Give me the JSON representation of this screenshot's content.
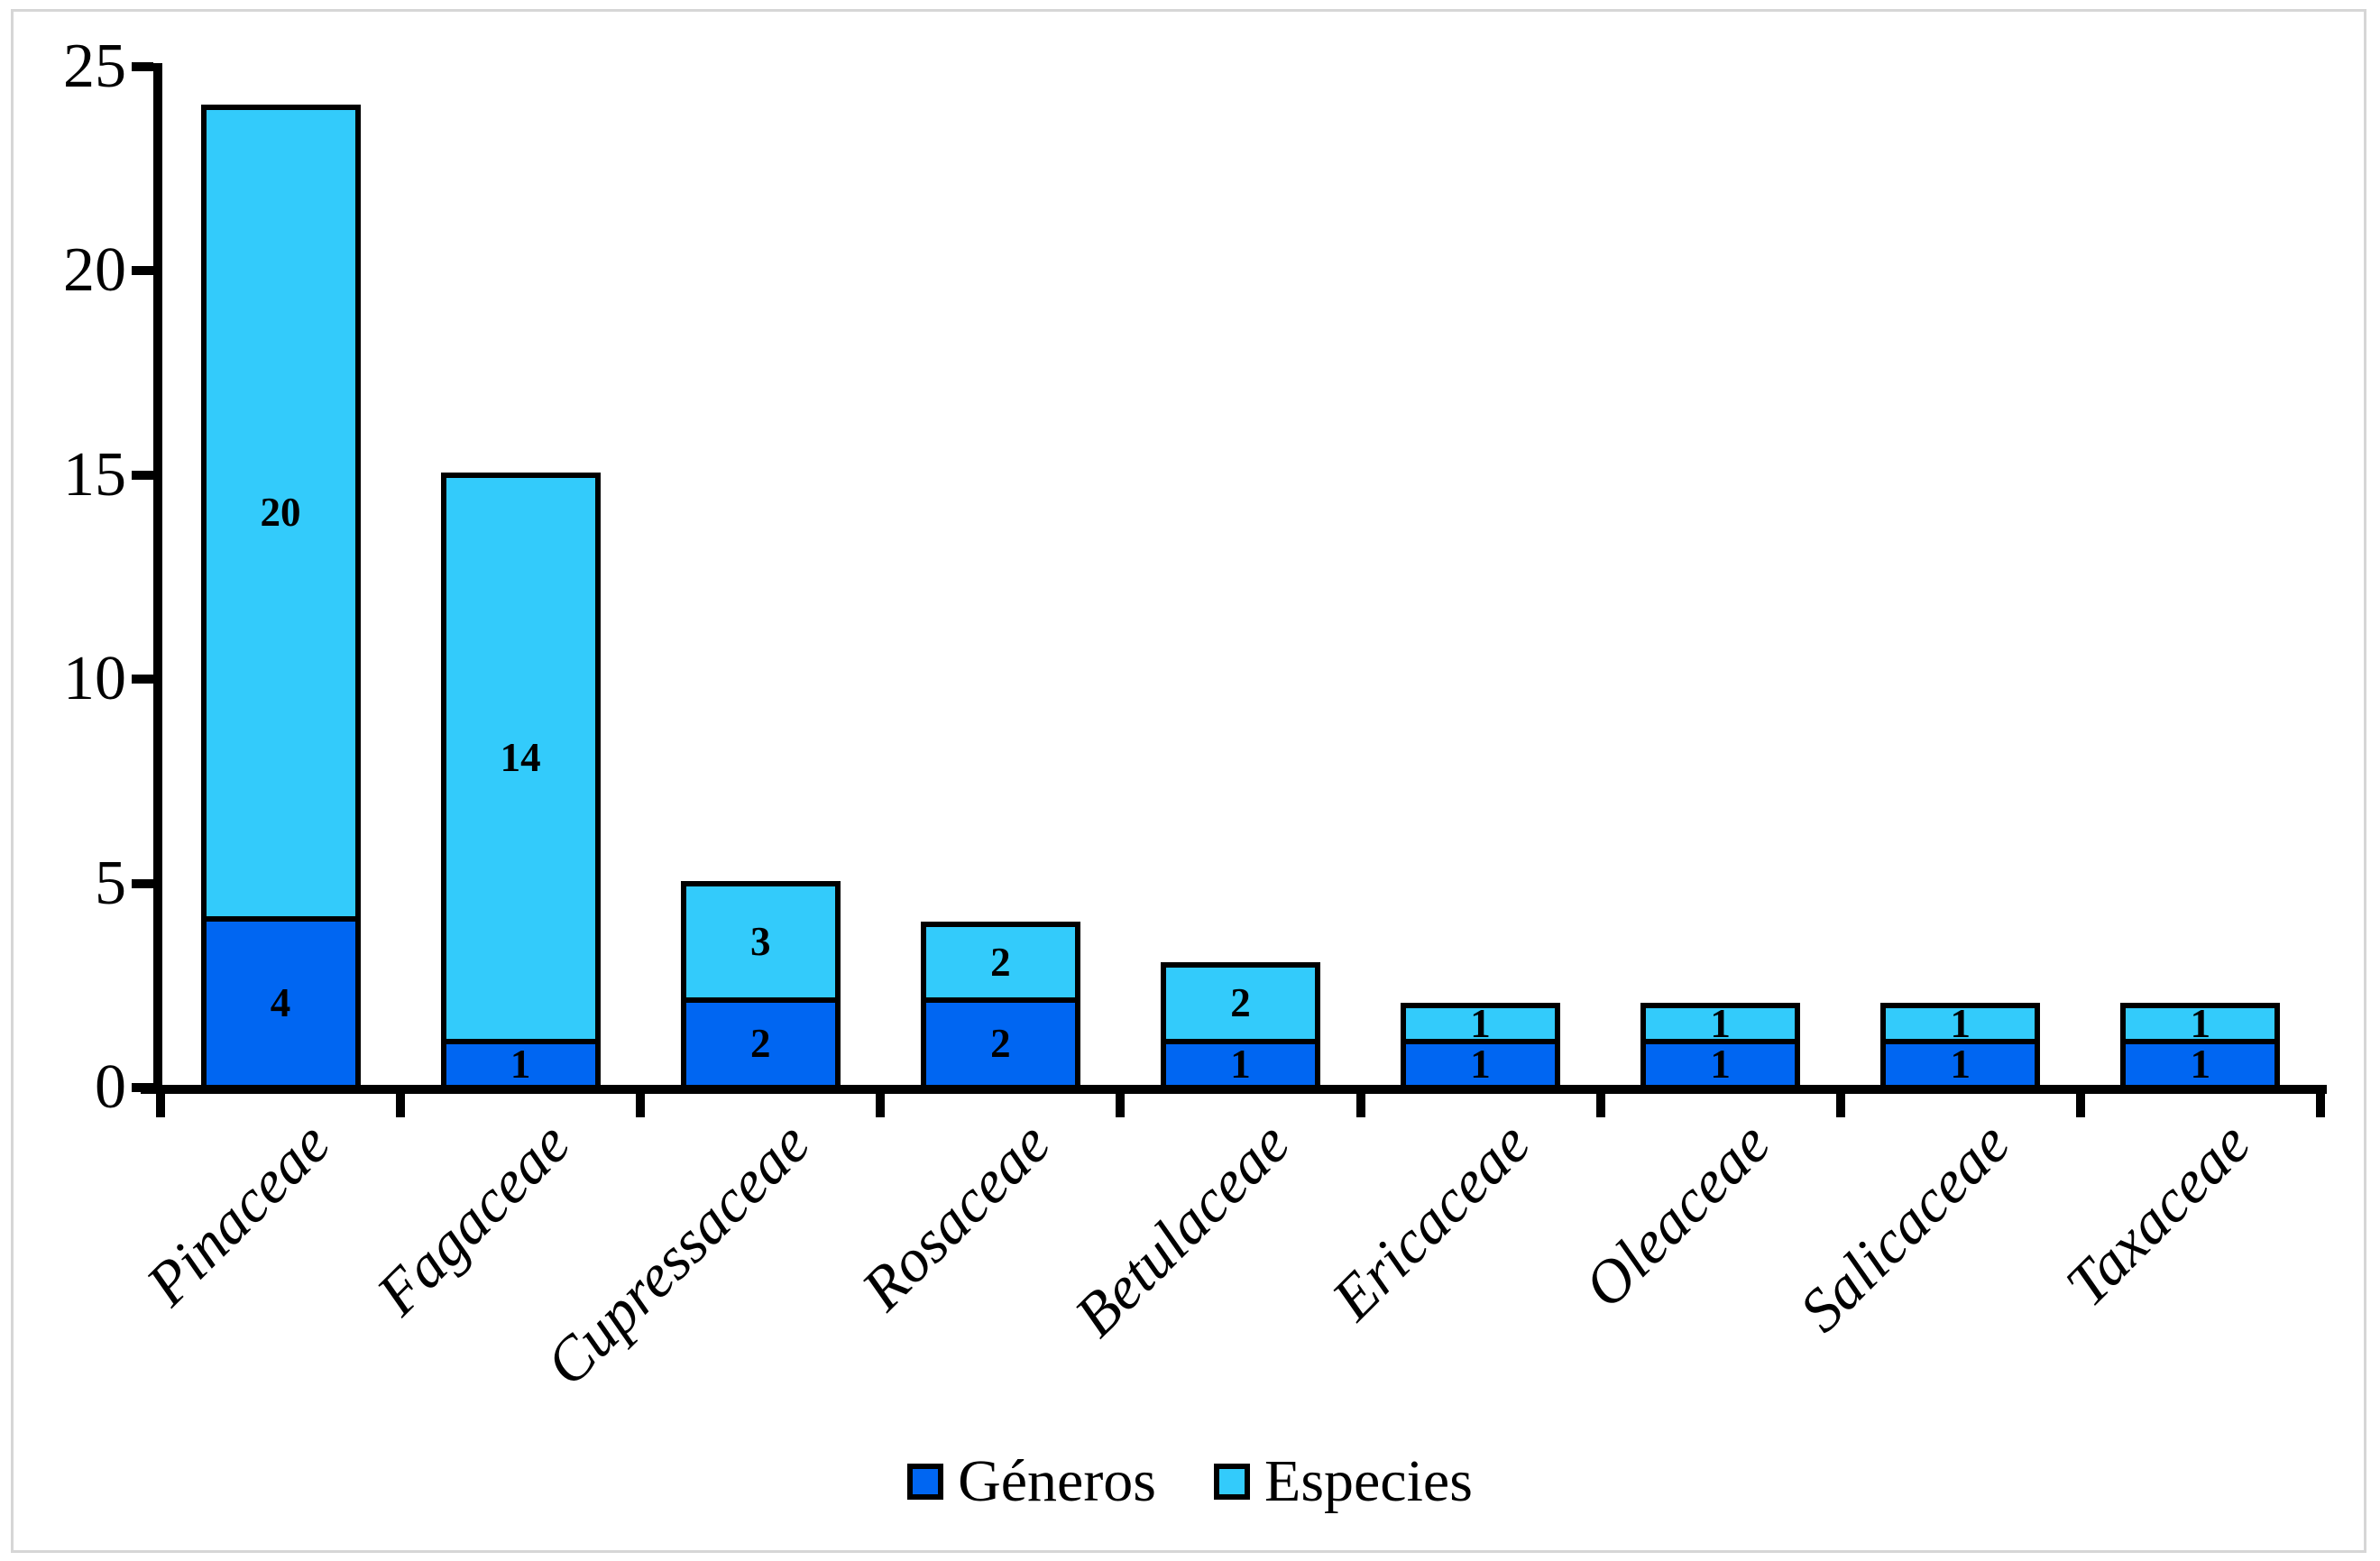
{
  "chart_data": {
    "type": "bar",
    "stacked": true,
    "title": "",
    "xlabel": "",
    "ylabel": "",
    "categories": [
      "Pinaceae",
      "Fagaceae",
      "Cupressaceae",
      "Rosaceae",
      "Betulaceae",
      "Ericaceae",
      "Oleaceae",
      "Salicaceae",
      "Taxaceae"
    ],
    "series": [
      {
        "name": "Géneros",
        "color": "#0066F2",
        "values": [
          4,
          1,
          2,
          2,
          1,
          1,
          1,
          1,
          1
        ]
      },
      {
        "name": "Especies",
        "color": "#33CBFB",
        "values": [
          20,
          14,
          3,
          2,
          2,
          1,
          1,
          1,
          1
        ]
      }
    ],
    "totals": [
      24,
      15,
      5,
      4,
      3,
      2,
      2,
      2,
      2
    ],
    "bar_value_labels_shown": true,
    "y_axis": {
      "min": 0,
      "max": 25,
      "tick_interval": 5,
      "tick_labels": [
        "0",
        "5",
        "10",
        "15",
        "20",
        "25"
      ]
    },
    "legend": {
      "position": "bottom",
      "entries": [
        "Géneros",
        "Especies"
      ]
    },
    "grid": false,
    "category_label_rotation_deg": -45,
    "colors": {
      "outline": "#000000",
      "frame_border": "#d6d6d6",
      "background": "#ffffff"
    }
  }
}
